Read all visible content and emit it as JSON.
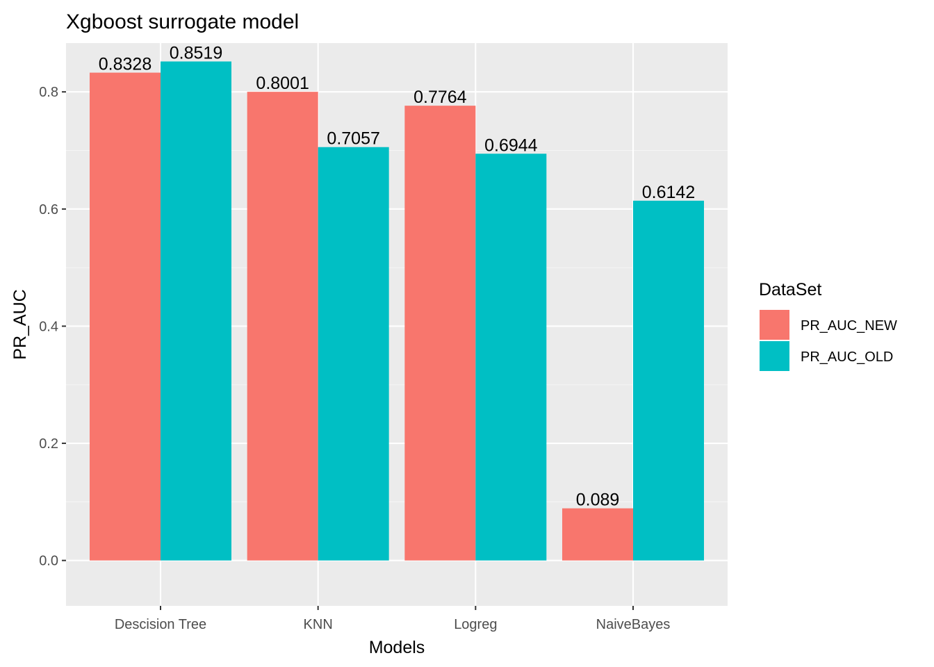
{
  "chart_data": {
    "type": "bar",
    "title": "Xgboost surrogate model",
    "xlabel": "Models",
    "ylabel": "PR_AUC",
    "categories": [
      "Descision Tree",
      "KNN",
      "Logreg",
      "NaiveBayes"
    ],
    "series": [
      {
        "name": "PR_AUC_NEW",
        "color": "#F8766D",
        "values": [
          0.8328,
          0.8001,
          0.7764,
          0.089
        ],
        "labels": [
          "0.8328",
          "0.8001",
          "0.7764",
          "0.089"
        ]
      },
      {
        "name": "PR_AUC_OLD",
        "color": "#00BFC4",
        "values": [
          0.8519,
          0.7057,
          0.6944,
          0.6142
        ],
        "labels": [
          "0.8519",
          "0.7057",
          "0.6944",
          "0.6142"
        ]
      }
    ],
    "ylim": [
      -0.0775,
      0.8833
    ],
    "yticks": [
      0.0,
      0.2,
      0.4,
      0.6,
      0.8
    ],
    "ytick_labels": [
      "0.0",
      "0.2",
      "0.4",
      "0.6",
      "0.8"
    ],
    "grid": true,
    "legend": {
      "title": "DataSet",
      "position": "right"
    },
    "colors": {
      "panel_background": "#EBEBEB",
      "grid_major": "#FFFFFF",
      "grid_minor": "#F5F5F5",
      "tick": "#333333"
    }
  }
}
